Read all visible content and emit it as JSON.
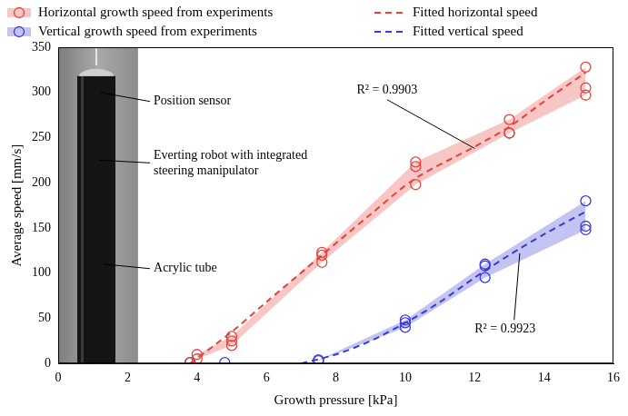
{
  "chart_data": {
    "type": "scatter",
    "x_label": "Growth pressure [kPa]",
    "y_label": "Average speed [mm/s]",
    "xlim": [
      0,
      16
    ],
    "xticks": [
      0,
      2,
      4,
      6,
      8,
      10,
      12,
      14,
      16
    ],
    "ylim": [
      0,
      350
    ],
    "yticks": [
      0,
      50,
      100,
      150,
      200,
      250,
      300,
      350
    ],
    "grid": false,
    "legend": "top",
    "series": [
      {
        "name": "Horizontal growth speed from experiments",
        "type": "scatter",
        "marker": "circle",
        "color": "#e8413c",
        "x": [
          3.8,
          4.0,
          4.0,
          5.0,
          5.0,
          5.0,
          7.6,
          7.6,
          7.6,
          10.3,
          10.3,
          10.3,
          13.0,
          13.0,
          13.0,
          15.2,
          15.2,
          15.2
        ],
        "values": [
          1,
          5,
          10,
          20,
          25,
          30,
          112,
          120,
          123,
          198,
          218,
          223,
          255,
          255,
          270,
          297,
          305,
          328
        ]
      },
      {
        "name": "Vertical growth speed from experiments",
        "type": "scatter",
        "marker": "circle",
        "color": "#3a3ad6",
        "x": [
          3.8,
          4.8,
          7.5,
          7.5,
          10.0,
          10.0,
          10.0,
          12.3,
          12.3,
          12.3,
          15.2,
          15.2,
          15.2
        ],
        "values": [
          1,
          1,
          3,
          4,
          40,
          45,
          48,
          95,
          108,
          110,
          148,
          152,
          180
        ]
      },
      {
        "name": "Fitted horizontal speed",
        "type": "line",
        "line_style": "dashed",
        "color": "#e8413c",
        "x": [
          3.8,
          5,
          6,
          7.6,
          9,
          10.3,
          12,
          13,
          14,
          15.2
        ],
        "values": [
          0,
          35,
          68,
          120,
          165,
          205,
          240,
          262,
          290,
          322
        ]
      },
      {
        "name": "Fitted vertical speed",
        "type": "line",
        "line_style": "dashed",
        "color": "#3a3ad6",
        "x": [
          7,
          8,
          9,
          10,
          11,
          12,
          13,
          14,
          15.2
        ],
        "values": [
          0,
          10,
          25,
          45,
          68,
          95,
          120,
          143,
          168
        ]
      }
    ],
    "bands": [
      {
        "series": "Horizontal growth speed from experiments",
        "x": [
          4.0,
          5.0,
          7.6,
          10.3,
          13.0,
          15.2
        ],
        "low": [
          5,
          20,
          112,
          198,
          255,
          297
        ],
        "high": [
          10,
          30,
          123,
          223,
          270,
          328
        ]
      },
      {
        "series": "Vertical growth speed from experiments",
        "x": [
          7.5,
          10.0,
          12.3,
          15.2
        ],
        "low": [
          3,
          40,
          95,
          148
        ],
        "high": [
          4,
          48,
          110,
          180
        ]
      }
    ],
    "annotations": [
      "Position sensor",
      "Everting robot with integrated steering manipulator",
      "Acrylic tube",
      "R² = 0.9903",
      "R² = 0.9923"
    ]
  }
}
